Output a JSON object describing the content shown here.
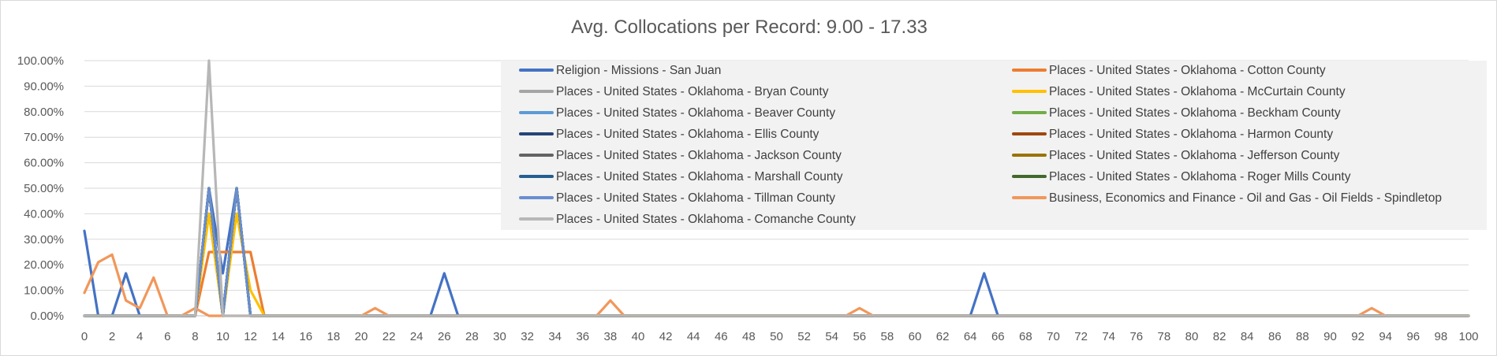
{
  "chart_data": {
    "type": "line",
    "title": "Avg. Collocations per Record: 9.00 - 17.33",
    "xlabel": "",
    "ylabel": "",
    "x": [
      0,
      1,
      2,
      3,
      4,
      5,
      6,
      7,
      8,
      9,
      10,
      11,
      12,
      13,
      14,
      15,
      16,
      17,
      18,
      19,
      20,
      21,
      22,
      23,
      24,
      25,
      26,
      27,
      28,
      29,
      30,
      31,
      32,
      33,
      34,
      35,
      36,
      37,
      38,
      39,
      40,
      41,
      42,
      43,
      44,
      45,
      46,
      47,
      48,
      49,
      50,
      51,
      52,
      53,
      54,
      55,
      56,
      57,
      58,
      59,
      60,
      61,
      62,
      63,
      64,
      65,
      66,
      67,
      68,
      69,
      70,
      71,
      72,
      73,
      74,
      75,
      76,
      77,
      78,
      79,
      80,
      81,
      82,
      83,
      84,
      85,
      86,
      87,
      88,
      89,
      90,
      91,
      92,
      93,
      94,
      95,
      96,
      97,
      98,
      99,
      100
    ],
    "x_tick_labels": [
      "0",
      "2",
      "4",
      "6",
      "8",
      "10",
      "12",
      "14",
      "16",
      "18",
      "20",
      "22",
      "24",
      "26",
      "28",
      "30",
      "32",
      "34",
      "36",
      "38",
      "40",
      "42",
      "44",
      "46",
      "48",
      "50",
      "52",
      "54",
      "56",
      "58",
      "60",
      "62",
      "64",
      "66",
      "68",
      "70",
      "72",
      "74",
      "76",
      "78",
      "80",
      "82",
      "84",
      "86",
      "88",
      "90",
      "92",
      "94",
      "96",
      "98",
      "100"
    ],
    "y_tick_labels": [
      "0.00%",
      "10.00%",
      "20.00%",
      "30.00%",
      "40.00%",
      "50.00%",
      "60.00%",
      "70.00%",
      "80.00%",
      "90.00%",
      "100.00%"
    ],
    "ylim": [
      0,
      1
    ],
    "xlim": [
      0,
      100
    ],
    "grid": "horizontal",
    "legend_position": "top-right",
    "series": [
      {
        "name": "Religion - Missions - San Juan",
        "color": "#4472c4",
        "points": {
          "0": 0.333,
          "3": 0.1667,
          "9": 0.5,
          "10": 0.1667,
          "11": 0.5,
          "26": 0.1667,
          "65": 0.1667
        }
      },
      {
        "name": "Places - United States - Oklahoma - Cotton County",
        "color": "#ed7d31",
        "points": {
          "9": 0.25,
          "10": 0.25,
          "11": 0.25,
          "12": 0.25
        }
      },
      {
        "name": "Places - United States - Oklahoma - Bryan County",
        "color": "#a5a5a5",
        "points": {
          "9": 0.5,
          "11": 0.5
        }
      },
      {
        "name": "Places - United States - Oklahoma - McCurtain County",
        "color": "#ffc000",
        "points": {
          "9": 0.4,
          "11": 0.4,
          "12": 0.1
        }
      },
      {
        "name": "Places - United States - Oklahoma - Beaver County",
        "color": "#5b9bd5",
        "points": {
          "9": 0.5,
          "11": 0.5
        }
      },
      {
        "name": "Places - United States - Oklahoma - Beckham County",
        "color": "#70ad47",
        "points": {
          "9": 0.5,
          "11": 0.5
        }
      },
      {
        "name": "Places - United States - Oklahoma - Ellis County",
        "color": "#264478",
        "points": {
          "9": 0.5,
          "11": 0.5
        }
      },
      {
        "name": "Places - United States - Oklahoma - Harmon County",
        "color": "#9e480e",
        "points": {
          "9": 0.5,
          "11": 0.5
        }
      },
      {
        "name": "Places - United States - Oklahoma - Jackson County",
        "color": "#636363",
        "points": {
          "9": 0.5,
          "11": 0.5
        }
      },
      {
        "name": "Places - United States - Oklahoma - Jefferson County",
        "color": "#997300",
        "points": {
          "9": 0.5,
          "11": 0.5
        }
      },
      {
        "name": "Places - United States - Oklahoma - Marshall County",
        "color": "#255e91",
        "points": {
          "9": 0.5,
          "11": 0.5
        }
      },
      {
        "name": "Places - United States - Oklahoma - Roger Mills County",
        "color": "#43682b",
        "points": {
          "9": 0.5,
          "11": 0.5
        }
      },
      {
        "name": "Places - United States - Oklahoma - Tillman County",
        "color": "#698ed0",
        "points": {
          "9": 0.5,
          "11": 0.5
        }
      },
      {
        "name": "Business, Economics and Finance - Oil and Gas - Oil Fields - Spindletop",
        "color": "#f1975a",
        "points": {
          "0": 0.09,
          "1": 0.21,
          "2": 0.24,
          "3": 0.06,
          "4": 0.03,
          "5": 0.15,
          "8": 0.03,
          "21": 0.03,
          "38": 0.06,
          "56": 0.03,
          "93": 0.03
        }
      },
      {
        "name": "Places - United States - Oklahoma - Comanche County",
        "color": "#b7b7b7",
        "points": {
          "9": 1.0
        }
      }
    ]
  }
}
